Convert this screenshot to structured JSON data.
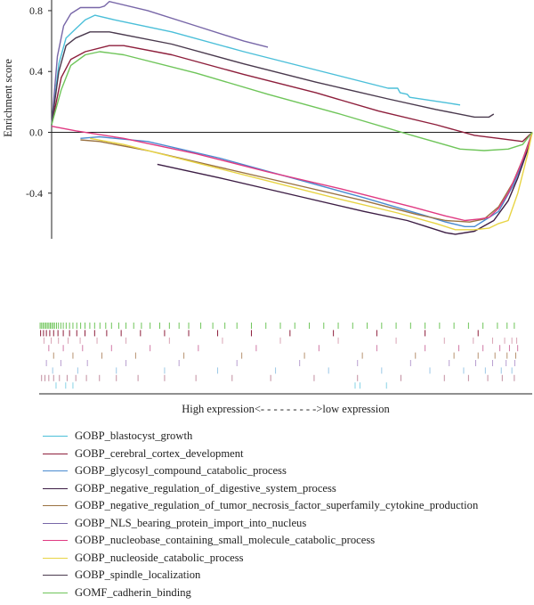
{
  "chart_data": {
    "type": "line",
    "ylabel": "Enrichment score",
    "xlabel": "High expression<- - - - - - - - ->low expression",
    "ylim": [
      -0.7,
      0.87
    ],
    "yticks": [
      "0.8",
      "0.4",
      "0.0",
      "-0.4"
    ],
    "ytick_values": [
      0.8,
      0.4,
      0.0,
      -0.4
    ],
    "xlim": [
      0,
      100
    ],
    "legend_position": "bottom",
    "grid": false,
    "series": [
      {
        "name": "GOBP_blastocyst_growth",
        "color": "#4bbfd9",
        "points": [
          [
            0,
            0.05
          ],
          [
            1.5,
            0.45
          ],
          [
            3,
            0.62
          ],
          [
            5,
            0.68
          ],
          [
            7,
            0.74
          ],
          [
            9,
            0.77
          ],
          [
            13,
            0.74
          ],
          [
            25,
            0.66
          ],
          [
            40,
            0.53
          ],
          [
            55,
            0.41
          ],
          [
            70,
            0.29
          ],
          [
            72,
            0.29
          ],
          [
            72.5,
            0.26
          ],
          [
            74,
            0.25
          ],
          [
            74.5,
            0.23
          ],
          [
            83,
            0.19
          ],
          [
            85,
            0.18
          ]
        ]
      },
      {
        "name": "GOBP_cerebral_cortex_development",
        "color": "#8e1f3c",
        "points": [
          [
            0,
            0.05
          ],
          [
            2,
            0.36
          ],
          [
            4,
            0.48
          ],
          [
            7,
            0.53
          ],
          [
            12,
            0.57
          ],
          [
            15,
            0.57
          ],
          [
            25,
            0.51
          ],
          [
            40,
            0.38
          ],
          [
            55,
            0.26
          ],
          [
            68,
            0.14
          ],
          [
            80,
            0.05
          ],
          [
            88,
            -0.02
          ],
          [
            93,
            -0.04
          ],
          [
            98,
            -0.06
          ],
          [
            100,
            0.0
          ]
        ]
      },
      {
        "name": "GOBP_glycosyl_compound_catabolic_process",
        "color": "#4a8bd0",
        "points": [
          [
            6,
            -0.04
          ],
          [
            10,
            -0.03
          ],
          [
            20,
            -0.06
          ],
          [
            35,
            -0.17
          ],
          [
            50,
            -0.3
          ],
          [
            65,
            -0.43
          ],
          [
            78,
            -0.55
          ],
          [
            82,
            -0.59
          ],
          [
            86,
            -0.62
          ],
          [
            88,
            -0.62
          ],
          [
            90,
            -0.58
          ],
          [
            93,
            -0.52
          ],
          [
            96,
            -0.35
          ],
          [
            98,
            -0.2
          ],
          [
            100,
            0.0
          ]
        ]
      },
      {
        "name": "GOBP_negative_regulation_of_digestive_system_process",
        "color": "#3d1e45",
        "points": [
          [
            22,
            -0.21
          ],
          [
            35,
            -0.3
          ],
          [
            50,
            -0.41
          ],
          [
            65,
            -0.52
          ],
          [
            74,
            -0.58
          ],
          [
            78,
            -0.62
          ],
          [
            82,
            -0.66
          ],
          [
            84,
            -0.67
          ],
          [
            88,
            -0.65
          ],
          [
            92,
            -0.58
          ],
          [
            95,
            -0.45
          ],
          [
            97,
            -0.3
          ],
          [
            99,
            -0.12
          ],
          [
            100,
            0.0
          ]
        ]
      },
      {
        "name": "GOBP_negative_regulation_of_tumor_necrosis_factor_superfamily_cytokine_production",
        "color": "#9a7242",
        "points": [
          [
            6,
            -0.05
          ],
          [
            10,
            -0.06
          ],
          [
            20,
            -0.12
          ],
          [
            35,
            -0.23
          ],
          [
            50,
            -0.34
          ],
          [
            65,
            -0.45
          ],
          [
            76,
            -0.54
          ],
          [
            82,
            -0.58
          ],
          [
            87,
            -0.59
          ],
          [
            90,
            -0.57
          ],
          [
            93,
            -0.49
          ],
          [
            96,
            -0.33
          ],
          [
            98,
            -0.18
          ],
          [
            100,
            0.0
          ]
        ]
      },
      {
        "name": "GOBP_NLS_bearing_protein_import_into_nucleus",
        "color": "#7867a8",
        "points": [
          [
            0,
            0.05
          ],
          [
            1.2,
            0.5
          ],
          [
            2.5,
            0.7
          ],
          [
            4,
            0.78
          ],
          [
            6,
            0.82
          ],
          [
            10,
            0.82
          ],
          [
            11,
            0.83
          ],
          [
            12,
            0.86
          ],
          [
            20,
            0.8
          ],
          [
            30,
            0.7
          ],
          [
            40,
            0.6
          ],
          [
            45,
            0.56
          ]
        ]
      },
      {
        "name": "GOBP_nucleobase_containing_small_molecule_catabolic_process",
        "color": "#e03a82",
        "points": [
          [
            0,
            0.04
          ],
          [
            5,
            0.01
          ],
          [
            15,
            -0.04
          ],
          [
            30,
            -0.14
          ],
          [
            45,
            -0.26
          ],
          [
            60,
            -0.37
          ],
          [
            75,
            -0.49
          ],
          [
            82,
            -0.55
          ],
          [
            86,
            -0.58
          ],
          [
            89,
            -0.57
          ],
          [
            91,
            -0.56
          ],
          [
            93,
            -0.5
          ],
          [
            95,
            -0.4
          ],
          [
            97,
            -0.26
          ],
          [
            99,
            -0.1
          ],
          [
            100,
            0.0
          ]
        ]
      },
      {
        "name": "GOBP_nucleoside_catabolic_process",
        "color": "#e8d444",
        "points": [
          [
            8,
            -0.04
          ],
          [
            15,
            -0.08
          ],
          [
            30,
            -0.2
          ],
          [
            45,
            -0.32
          ],
          [
            60,
            -0.44
          ],
          [
            72,
            -0.53
          ],
          [
            80,
            -0.6
          ],
          [
            84,
            -0.64
          ],
          [
            88,
            -0.64
          ],
          [
            91,
            -0.63
          ],
          [
            93,
            -0.6
          ],
          [
            95,
            -0.58
          ],
          [
            97,
            -0.4
          ],
          [
            99,
            -0.15
          ],
          [
            100,
            0.0
          ]
        ]
      },
      {
        "name": "GOBP_spindle_localization",
        "color": "#4a3a4e",
        "points": [
          [
            0,
            0.05
          ],
          [
            1.5,
            0.4
          ],
          [
            3,
            0.57
          ],
          [
            5,
            0.62
          ],
          [
            8,
            0.66
          ],
          [
            12,
            0.66
          ],
          [
            25,
            0.58
          ],
          [
            40,
            0.45
          ],
          [
            55,
            0.33
          ],
          [
            70,
            0.22
          ],
          [
            80,
            0.15
          ],
          [
            88,
            0.1
          ],
          [
            91,
            0.1
          ],
          [
            92,
            0.12
          ]
        ]
      },
      {
        "name": "GOMF_cadherin_binding",
        "color": "#6fc55a",
        "points": [
          [
            0,
            0.05
          ],
          [
            2,
            0.28
          ],
          [
            4,
            0.44
          ],
          [
            7,
            0.51
          ],
          [
            10,
            0.53
          ],
          [
            15,
            0.51
          ],
          [
            30,
            0.39
          ],
          [
            45,
            0.25
          ],
          [
            60,
            0.12
          ],
          [
            75,
            -0.02
          ],
          [
            85,
            -0.11
          ],
          [
            90,
            -0.12
          ],
          [
            95,
            -0.11
          ],
          [
            98,
            -0.08
          ],
          [
            100,
            0.0
          ]
        ]
      }
    ],
    "hits": [
      {
        "color": "#6fc55a",
        "positions": [
          0.2,
          0.5,
          0.8,
          1.1,
          1.4,
          1.7,
          2.0,
          2.3,
          2.6,
          2.9,
          3.2,
          3.6,
          4.0,
          4.5,
          5.0,
          5.6,
          6.3,
          7.0,
          7.8,
          8.6,
          9.5,
          10.5,
          11.5,
          12.6,
          13.8,
          15.0,
          16.5,
          18.0,
          19.6,
          21.2,
          23.0,
          25.0,
          27.0,
          29.0,
          31.0,
          33.5,
          36.0,
          38.5,
          41.0,
          44.0,
          47.0,
          50.0,
          53.0,
          56.0,
          59.0,
          62.0,
          65.0,
          68.0,
          71.0,
          74.0,
          77.0,
          80.0,
          83.0,
          86.0,
          89.0,
          92.0,
          95.0,
          97.0,
          98.5
        ]
      },
      {
        "color": "#8e1f3c",
        "positions": [
          0.3,
          0.9,
          1.5,
          2.2,
          3.0,
          3.9,
          5.0,
          6.3,
          7.8,
          9.5,
          11.5,
          14.0,
          17.0,
          21.0,
          26.0,
          31.0,
          37.0,
          44.0,
          52.0,
          61.0,
          70.0,
          80.0,
          91.0
        ]
      },
      {
        "color": "#d9a4b5",
        "positions": [
          1.0,
          2.5,
          4.0,
          6.0,
          8.5,
          12.0,
          18.0,
          27.0,
          38.0,
          50.0,
          62.0,
          74.0,
          84.0,
          90.0,
          94.0,
          96.5,
          98.0,
          99.0
        ]
      },
      {
        "color": "#d07aa6",
        "positions": [
          2.0,
          5.0,
          9.0,
          15.0,
          23.0,
          33.0,
          45.0,
          58.0,
          70.0,
          80.0,
          87.0,
          92.0,
          95.5,
          97.5,
          99.2
        ]
      },
      {
        "color": "#b79270",
        "positions": [
          3.0,
          7.0,
          13.0,
          20.0,
          30.0,
          42.0,
          55.0,
          67.0,
          78.0,
          86.0,
          91.0,
          94.5,
          97.0,
          98.8
        ]
      },
      {
        "color": "#b89ed0",
        "positions": [
          1.5,
          4.5,
          10.0,
          18.0,
          29.0,
          41.0,
          54.0,
          66.0,
          77.0,
          85.0,
          90.5,
          94.0,
          96.8,
          98.6
        ]
      },
      {
        "color": "#9bc8e6",
        "positions": [
          2.8,
          8.0,
          16.0,
          26.0,
          37.0,
          49.0,
          60.0,
          71.0,
          81.0,
          88.0,
          92.5,
          95.8,
          98.0
        ]
      },
      {
        "color": "#c28ea0",
        "positions": [
          0.5,
          1.2,
          2.0,
          3.0,
          4.2,
          5.8,
          7.6,
          9.8,
          12.5,
          16.0,
          20.5,
          26.0,
          32.5,
          40.0,
          48.0,
          57.0,
          66.0,
          75.0,
          84.0,
          89.0,
          93.0,
          96.0,
          98.5
        ]
      },
      {
        "color": "#86d3e6",
        "positions": [
          3.5,
          5.5,
          7.0,
          65.5,
          66.5,
          72.0
        ]
      }
    ]
  }
}
